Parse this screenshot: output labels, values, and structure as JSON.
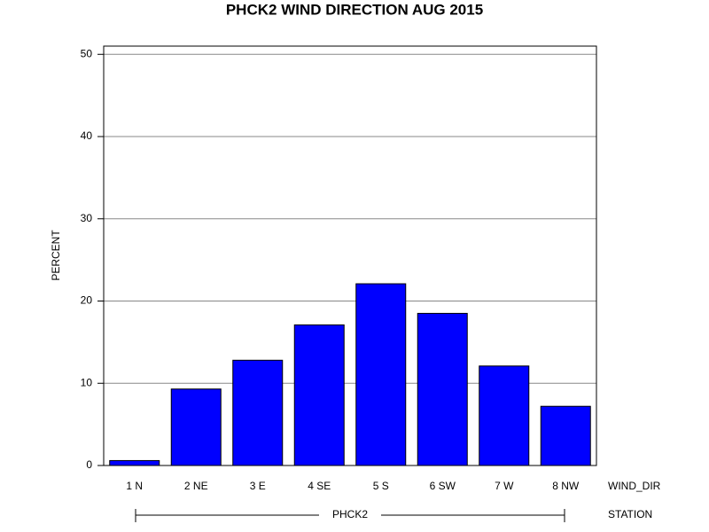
{
  "chart_data": {
    "type": "bar",
    "title": "PHCK2 WIND DIRECTION AUG 2015",
    "y_label": "PERCENT",
    "x_label": "WIND_DIR",
    "group_label": "STATION",
    "group": "PHCK2",
    "categories": [
      "1 N",
      "2 NE",
      "3 E",
      "4 SE",
      "5 S",
      "6 SW",
      "7 W",
      "8 NW"
    ],
    "values": [
      0.6,
      9.3,
      12.8,
      17.1,
      22.1,
      18.5,
      12.1,
      7.2
    ],
    "color": "#0000ff",
    "ylim": [
      0,
      51
    ],
    "yticks": [
      0,
      10,
      20,
      30,
      40,
      50
    ],
    "grid": true
  }
}
